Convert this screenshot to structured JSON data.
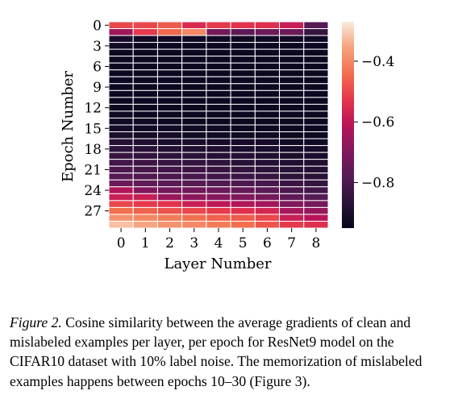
{
  "chart_data": {
    "type": "heatmap",
    "xlabel": "Layer Number",
    "ylabel": "Epoch Number",
    "x_ticks": [
      "0",
      "1",
      "2",
      "3",
      "4",
      "5",
      "6",
      "7",
      "8"
    ],
    "y_ticks": [
      "0",
      "3",
      "6",
      "9",
      "12",
      "15",
      "18",
      "21",
      "24",
      "27"
    ],
    "colorbar": {
      "ticks": [
        -0.4,
        -0.6,
        -0.8
      ],
      "tick_labels": [
        "−0.4",
        "−0.6",
        "−0.8"
      ],
      "range": [
        -0.95,
        -0.27
      ]
    },
    "grid_lines": true,
    "values": [
      [
        -0.5,
        -0.5,
        -0.47,
        -0.55,
        -0.52,
        -0.53,
        -0.54,
        -0.58,
        -0.78
      ],
      [
        -0.65,
        -0.52,
        -0.45,
        -0.4,
        -0.72,
        -0.77,
        -0.74,
        -0.74,
        -0.84
      ],
      [
        -0.9,
        -0.92,
        -0.92,
        -0.92,
        -0.92,
        -0.92,
        -0.92,
        -0.92,
        -0.92
      ],
      [
        -0.92,
        -0.93,
        -0.93,
        -0.93,
        -0.93,
        -0.93,
        -0.93,
        -0.93,
        -0.93
      ],
      [
        -0.93,
        -0.93,
        -0.93,
        -0.93,
        -0.93,
        -0.93,
        -0.93,
        -0.93,
        -0.93
      ],
      [
        -0.93,
        -0.93,
        -0.93,
        -0.93,
        -0.93,
        -0.93,
        -0.93,
        -0.93,
        -0.93
      ],
      [
        -0.93,
        -0.93,
        -0.93,
        -0.93,
        -0.93,
        -0.93,
        -0.93,
        -0.93,
        -0.93
      ],
      [
        -0.93,
        -0.93,
        -0.93,
        -0.93,
        -0.93,
        -0.93,
        -0.93,
        -0.93,
        -0.93
      ],
      [
        -0.93,
        -0.93,
        -0.93,
        -0.93,
        -0.93,
        -0.93,
        -0.93,
        -0.93,
        -0.93
      ],
      [
        -0.93,
        -0.93,
        -0.93,
        -0.93,
        -0.93,
        -0.93,
        -0.93,
        -0.93,
        -0.93
      ],
      [
        -0.93,
        -0.93,
        -0.93,
        -0.93,
        -0.93,
        -0.93,
        -0.93,
        -0.93,
        -0.93
      ],
      [
        -0.93,
        -0.93,
        -0.93,
        -0.93,
        -0.93,
        -0.93,
        -0.93,
        -0.93,
        -0.93
      ],
      [
        -0.93,
        -0.93,
        -0.93,
        -0.93,
        -0.93,
        -0.93,
        -0.93,
        -0.93,
        -0.93
      ],
      [
        -0.92,
        -0.93,
        -0.93,
        -0.93,
        -0.93,
        -0.93,
        -0.93,
        -0.93,
        -0.93
      ],
      [
        -0.92,
        -0.92,
        -0.93,
        -0.93,
        -0.93,
        -0.93,
        -0.93,
        -0.93,
        -0.93
      ],
      [
        -0.91,
        -0.92,
        -0.92,
        -0.92,
        -0.92,
        -0.93,
        -0.93,
        -0.93,
        -0.93
      ],
      [
        -0.9,
        -0.91,
        -0.91,
        -0.92,
        -0.92,
        -0.92,
        -0.92,
        -0.93,
        -0.93
      ],
      [
        -0.88,
        -0.89,
        -0.9,
        -0.9,
        -0.91,
        -0.91,
        -0.91,
        -0.92,
        -0.92
      ],
      [
        -0.86,
        -0.87,
        -0.88,
        -0.89,
        -0.89,
        -0.9,
        -0.9,
        -0.91,
        -0.91
      ],
      [
        -0.84,
        -0.85,
        -0.86,
        -0.87,
        -0.88,
        -0.88,
        -0.89,
        -0.9,
        -0.9
      ],
      [
        -0.82,
        -0.83,
        -0.84,
        -0.85,
        -0.86,
        -0.87,
        -0.88,
        -0.89,
        -0.89
      ],
      [
        -0.8,
        -0.81,
        -0.82,
        -0.83,
        -0.84,
        -0.85,
        -0.86,
        -0.87,
        -0.88
      ],
      [
        -0.78,
        -0.79,
        -0.8,
        -0.81,
        -0.82,
        -0.83,
        -0.84,
        -0.86,
        -0.87
      ],
      [
        -0.74,
        -0.76,
        -0.77,
        -0.78,
        -0.79,
        -0.8,
        -0.81,
        -0.83,
        -0.85
      ],
      [
        -0.62,
        -0.7,
        -0.72,
        -0.73,
        -0.74,
        -0.75,
        -0.77,
        -0.8,
        -0.82
      ],
      [
        -0.58,
        -0.58,
        -0.66,
        -0.68,
        -0.69,
        -0.7,
        -0.72,
        -0.76,
        -0.78
      ],
      [
        -0.5,
        -0.52,
        -0.53,
        -0.58,
        -0.6,
        -0.62,
        -0.64,
        -0.7,
        -0.72
      ],
      [
        -0.44,
        -0.46,
        -0.48,
        -0.5,
        -0.52,
        -0.54,
        -0.56,
        -0.64,
        -0.67
      ],
      [
        -0.38,
        -0.4,
        -0.42,
        -0.44,
        -0.46,
        -0.47,
        -0.5,
        -0.58,
        -0.61
      ],
      [
        -0.32,
        -0.35,
        -0.38,
        -0.4,
        -0.42,
        -0.44,
        -0.48,
        -0.52,
        -0.54
      ]
    ]
  },
  "caption": {
    "label": "Figure 2.",
    "text": " Cosine similarity between the average gradients of clean and mislabeled examples per layer, per epoch for ResNet9 model on the CIFAR10 dataset with 10% label noise. The memorization of mislabeled examples happens between epochs 10–30 (Figure 3)."
  }
}
